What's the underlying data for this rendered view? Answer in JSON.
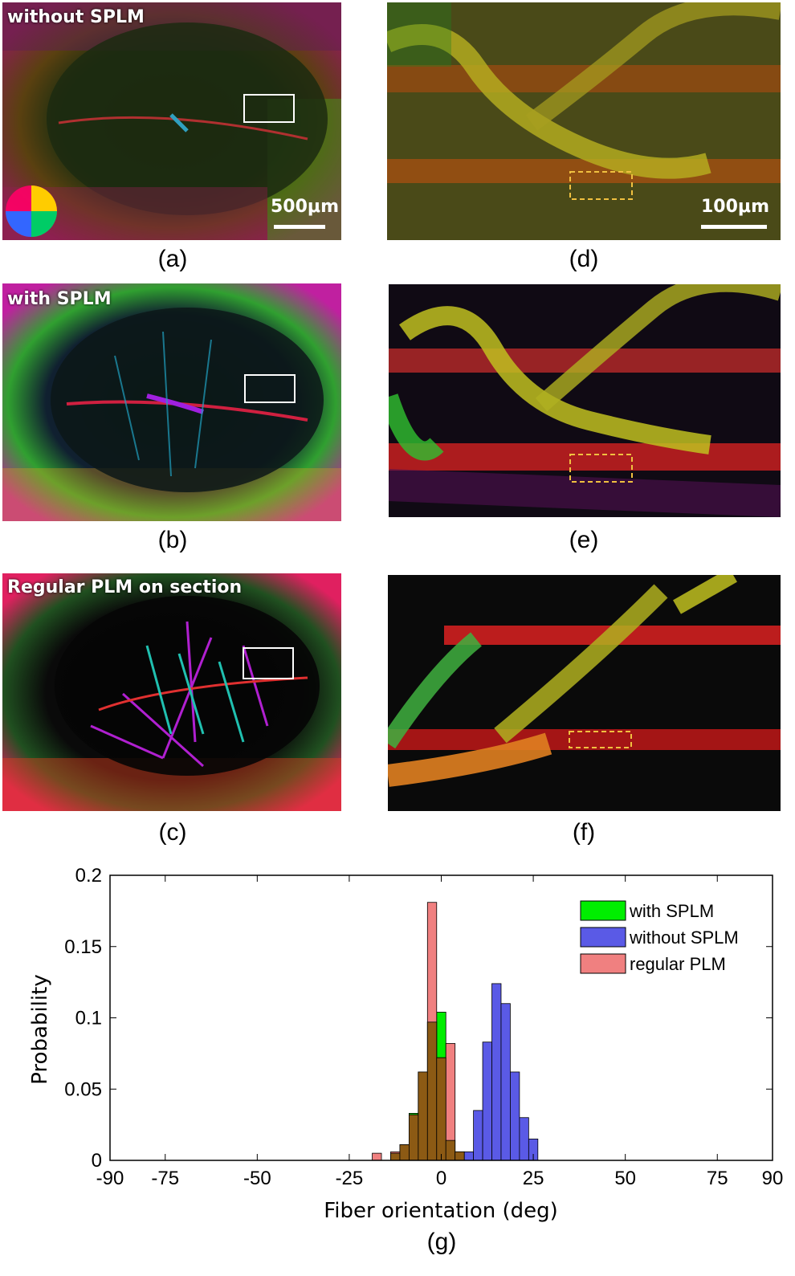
{
  "panels": {
    "a": {
      "label": "without SPLM",
      "scale": "500μm",
      "caption": "(a)"
    },
    "b": {
      "label": "with SPLM",
      "caption": "(b)"
    },
    "c": {
      "label": "Regular PLM on section",
      "caption": "(c)"
    },
    "d": {
      "scale": "100μm",
      "caption": "(d)"
    },
    "e": {
      "caption": "(e)"
    },
    "f": {
      "caption": "(f)"
    },
    "g": {
      "caption": "(g)"
    }
  },
  "chart_data": {
    "type": "bar",
    "xlabel": "Fiber orientation (deg)",
    "ylabel": "Probability",
    "xlim": [
      -90,
      90
    ],
    "ylim": [
      0,
      0.2
    ],
    "xticks": [
      -90,
      -75,
      -50,
      -25,
      0,
      25,
      50,
      75,
      90
    ],
    "yticks": [
      0,
      0.05,
      0.1,
      0.15,
      0.2
    ],
    "ytick_labels": [
      "0",
      "0.05",
      "0.1",
      "0.15",
      "0.2"
    ],
    "bin_width": 2.5,
    "legend_position": "top-right",
    "series": [
      {
        "name": "with SPLM",
        "color": "#00ee00",
        "bins": [
          -12.5,
          -10,
          -7.5,
          -5,
          -2.5,
          0,
          2.5,
          5
        ],
        "values": [
          0.005,
          0.011,
          0.033,
          0.062,
          0.097,
          0.104,
          0.014,
          0.006
        ]
      },
      {
        "name": "without SPLM",
        "color": "#5a5ae6",
        "bins": [
          7.5,
          10,
          12.5,
          15,
          17.5,
          20,
          22.5,
          25
        ],
        "values": [
          0.006,
          0.035,
          0.083,
          0.124,
          0.11,
          0.062,
          0.03,
          0.015
        ]
      },
      {
        "name": "regular PLM",
        "color": "#f08080",
        "bins": [
          -17.5,
          -12.5,
          -10,
          -7.5,
          -5,
          -2.5,
          0,
          2.5,
          5
        ],
        "values": [
          0.005,
          0.006,
          0.011,
          0.032,
          0.062,
          0.181,
          0.072,
          0.082,
          0.006
        ]
      }
    ],
    "overlap_color": "#8c5a14"
  }
}
